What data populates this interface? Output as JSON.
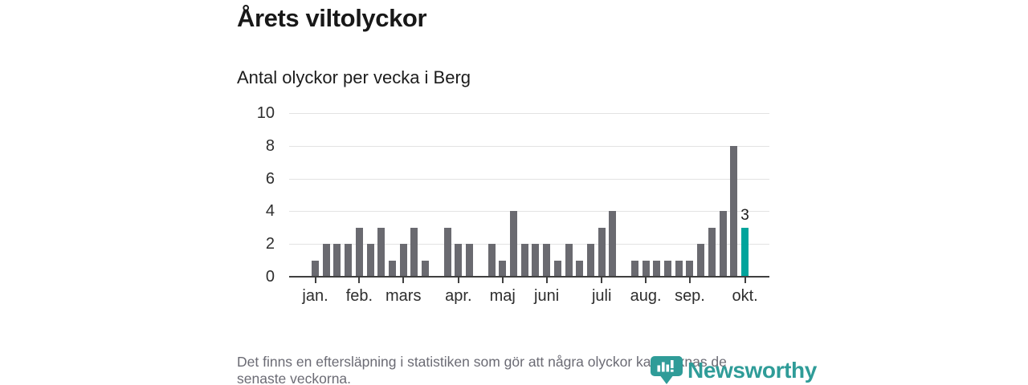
{
  "header": {
    "title": "Årets viltolyckor",
    "subtitle": "Antal olyckor per vecka i Berg"
  },
  "chart_data": {
    "type": "bar",
    "title": "Årets viltolyckor",
    "subtitle": "Antal olyckor per vecka i Berg",
    "xlabel": "",
    "ylabel": "",
    "ylim": [
      0,
      10
    ],
    "y_ticks": [
      0,
      2,
      4,
      6,
      8,
      10
    ],
    "grid": "horizontal",
    "weeks": 40,
    "values": [
      1,
      2,
      2,
      2,
      3,
      2,
      3,
      1,
      2,
      3,
      1,
      0,
      3,
      2,
      2,
      0,
      2,
      1,
      4,
      2,
      2,
      2,
      1,
      2,
      1,
      2,
      3,
      4,
      0,
      1,
      1,
      1,
      1,
      1,
      1,
      2,
      3,
      4,
      8,
      3
    ],
    "x_tick_labels": [
      "jan.",
      "feb.",
      "mars",
      "apr.",
      "maj",
      "juni",
      "juli",
      "aug.",
      "sep.",
      "okt."
    ],
    "x_tick_indices": [
      0,
      4,
      8,
      13,
      17,
      21,
      26,
      30,
      34,
      39
    ],
    "highlight_index": 39,
    "highlight_value_label": "3",
    "bar_color": "#6a6a70",
    "accent_color": "#00a49c",
    "axis_color": "#3f3f3f",
    "grid_color": "#e3e3e3",
    "legend": "none"
  },
  "footer": {
    "lines": [
      "Det finns en eftersläpning i statistiken som gör att några olyckor kan saknas de",
      "senaste veckorna."
    ]
  },
  "logo": {
    "text": "Newsworthy",
    "color": "#2f9c98"
  }
}
